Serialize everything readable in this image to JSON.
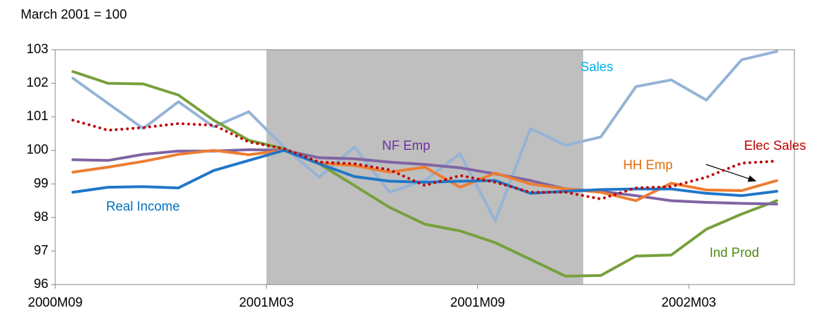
{
  "chart_data": {
    "type": "line",
    "ylabel": "March 2001 = 100",
    "categories": [
      "2000M09",
      null,
      null,
      null,
      null,
      null,
      "2001M03",
      null,
      null,
      null,
      null,
      null,
      "2001M09",
      null,
      null,
      null,
      null,
      null,
      "2002M03",
      null,
      null
    ],
    "ylim": [
      96,
      103
    ],
    "yticks": [
      96,
      97,
      98,
      99,
      100,
      101,
      102,
      103
    ],
    "shaded_categories": [
      6,
      14
    ],
    "shade_color": "#bfbfbf",
    "series": [
      {
        "name": "Sales",
        "color": "#95b3d7",
        "label_color": "#00b0f0",
        "dash": false,
        "values": [
          102.15,
          101.4,
          100.65,
          101.45,
          100.7,
          101.15,
          100.1,
          99.2,
          100.1,
          98.75,
          99.1,
          99.9,
          97.9,
          100.65,
          100.15,
          100.4,
          101.9,
          102.1,
          101.5,
          102.7,
          102.95
        ]
      },
      {
        "name": "Ind Prod",
        "color": "#77a03c",
        "label_color": "#4f8a10",
        "dash": false,
        "values": [
          102.35,
          102.0,
          101.98,
          101.65,
          100.9,
          100.3,
          100.05,
          99.6,
          98.95,
          98.3,
          97.8,
          97.6,
          97.25,
          96.75,
          96.25,
          96.27,
          96.85,
          96.88,
          97.65,
          98.1,
          98.5
        ]
      },
      {
        "name": "NF Emp",
        "color": "#8064a2",
        "label_color": "#7030a0",
        "dash": false,
        "values": [
          99.72,
          99.7,
          99.88,
          99.98,
          99.98,
          100.02,
          100.0,
          99.78,
          99.75,
          99.65,
          99.58,
          99.48,
          99.3,
          99.1,
          98.85,
          98.78,
          98.65,
          98.5,
          98.45,
          98.42,
          98.4
        ]
      },
      {
        "name": "HH Emp",
        "color": "#ed7d31",
        "label_color": "#e36c09",
        "dash": false,
        "values": [
          99.35,
          99.5,
          99.67,
          99.88,
          100.0,
          99.87,
          100.0,
          99.62,
          99.55,
          99.35,
          99.5,
          98.9,
          99.32,
          99.0,
          98.85,
          98.75,
          98.5,
          99.02,
          98.82,
          98.8,
          99.1
        ]
      },
      {
        "name": "Real Income",
        "color": "#1f77c8",
        "label_color": "#0070c0",
        "dash": false,
        "values": [
          98.75,
          98.9,
          98.92,
          98.88,
          99.4,
          99.7,
          100.0,
          99.6,
          99.22,
          99.08,
          99.05,
          99.08,
          99.1,
          98.72,
          98.78,
          98.83,
          98.85,
          98.85,
          98.72,
          98.65,
          98.78
        ]
      },
      {
        "name": "Elec Sales",
        "color": "#c00000",
        "label_color": "#c00000",
        "dash": true,
        "values": [
          100.9,
          100.6,
          100.68,
          100.8,
          100.75,
          100.25,
          100.05,
          99.65,
          99.6,
          99.42,
          98.95,
          99.25,
          99.05,
          98.75,
          98.75,
          98.55,
          98.88,
          98.92,
          99.2,
          99.62,
          99.68
        ]
      }
    ]
  }
}
